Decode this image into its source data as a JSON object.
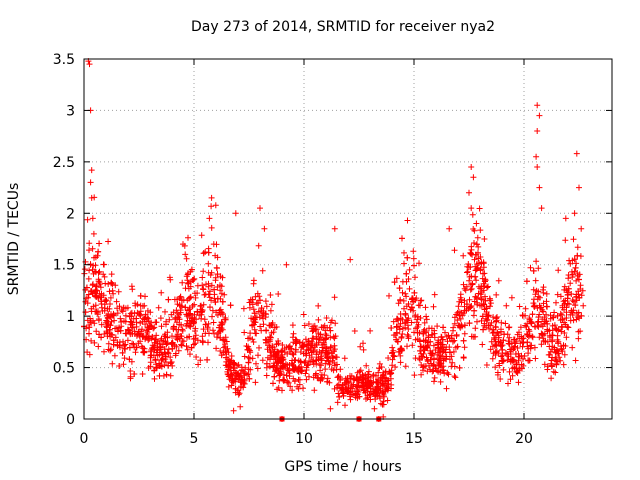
{
  "chart_data": {
    "type": "scatter",
    "title": "Day 273 of 2014, SRMTID for receiver nya2",
    "xlabel": "GPS time / hours",
    "ylabel": "SRMTID / TECUs",
    "xlim": [
      0,
      24
    ],
    "ylim": [
      0,
      3.5
    ],
    "xticks": [
      0,
      5,
      10,
      15,
      20
    ],
    "xtick_labels": [
      "0",
      "5",
      "10",
      "15",
      "20"
    ],
    "yticks": [
      0,
      0.5,
      1,
      1.5,
      2,
      2.5,
      3,
      3.5
    ],
    "ytick_labels": [
      "0",
      "0.5",
      "1",
      "1.5",
      "2",
      "2.5",
      "3",
      "3.5"
    ],
    "grid": true,
    "marker": "+",
    "color": "#ff0000",
    "x_range_hours": [
      0,
      22.7
    ],
    "series": [
      {
        "name": "SRMTID",
        "note": "dense cloud of ~3000 '+' markers; values mostly 0.3-1.2 TECU with peaks",
        "points": [
          [
            0.2,
            3.48
          ],
          [
            0.25,
            3.45
          ],
          [
            0.3,
            3.0
          ],
          [
            0.35,
            2.42
          ],
          [
            0.3,
            2.3
          ],
          [
            0.35,
            2.15
          ],
          [
            0.4,
            1.95
          ],
          [
            0.45,
            1.8
          ],
          [
            0.3,
            1.5
          ],
          [
            0.5,
            1.2
          ],
          [
            5.8,
            2.15
          ],
          [
            5.7,
            1.95
          ],
          [
            5.9,
            1.7
          ],
          [
            6.9,
            2.0
          ],
          [
            8.0,
            2.05
          ],
          [
            8.2,
            1.85
          ],
          [
            11.4,
            1.85
          ],
          [
            9.2,
            1.5
          ],
          [
            12.1,
            1.55
          ],
          [
            14.8,
            1.45
          ],
          [
            16.6,
            1.85
          ],
          [
            17.6,
            2.45
          ],
          [
            17.7,
            2.35
          ],
          [
            17.5,
            2.2
          ],
          [
            17.6,
            2.05
          ],
          [
            18.2,
            1.75
          ],
          [
            20.6,
            3.05
          ],
          [
            20.7,
            2.95
          ],
          [
            20.6,
            2.8
          ],
          [
            20.55,
            2.55
          ],
          [
            20.6,
            2.45
          ],
          [
            20.7,
            2.25
          ],
          [
            20.8,
            2.05
          ],
          [
            22.4,
            2.58
          ],
          [
            22.5,
            2.25
          ],
          [
            22.3,
            2.0
          ],
          [
            22.6,
            1.85
          ],
          [
            21.9,
            1.95
          ],
          [
            4.5,
            1.7
          ],
          [
            4.6,
            1.6
          ],
          [
            9.0,
            0.0
          ],
          [
            12.5,
            0.0
          ],
          [
            13.4,
            0.0
          ],
          [
            13.6,
            0.02
          ],
          [
            13.2,
            0.1
          ],
          [
            13.5,
            0.15
          ],
          [
            13.8,
            0.18
          ],
          [
            6.8,
            0.08
          ],
          [
            7.1,
            0.12
          ],
          [
            11.2,
            0.1
          ]
        ]
      }
    ]
  }
}
